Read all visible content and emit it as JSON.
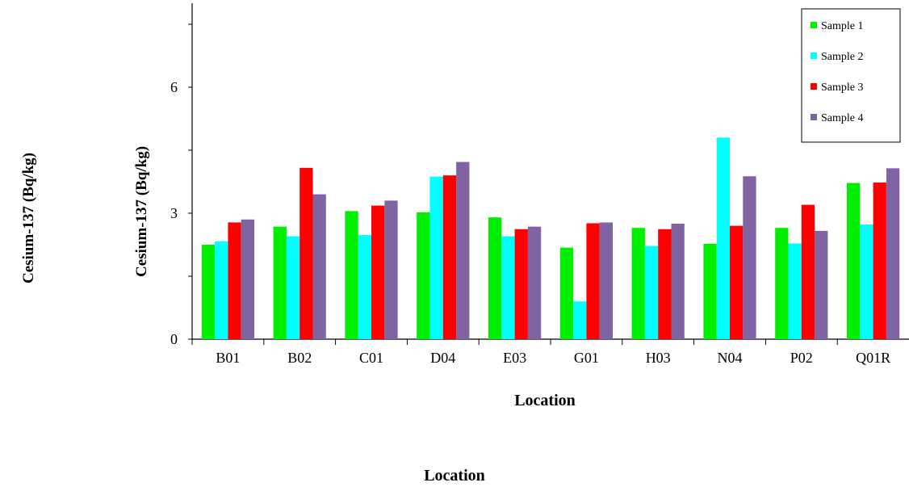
{
  "outer_labels": {
    "ylabel": "Cesium-137 (Bq/kg)",
    "xlabel": "Location"
  },
  "chart_data": {
    "type": "bar",
    "title": "",
    "xlabel": "Location",
    "ylabel": "Cesium-137 (Bq/kg)",
    "ylim": [
      0,
      8
    ],
    "yticks": [
      0,
      3,
      6
    ],
    "grid": false,
    "legend_position": "top-right",
    "categories": [
      "B01",
      "B02",
      "C01",
      "D04",
      "E03",
      "G01",
      "H03",
      "N04",
      "P02",
      "Q01R"
    ],
    "series": [
      {
        "name": "Sample 1",
        "color": "#00ee00",
        "values": [
          2.25,
          2.68,
          3.05,
          3.02,
          2.9,
          2.18,
          2.65,
          2.27,
          2.65,
          3.72
        ]
      },
      {
        "name": "Sample 2",
        "color": "#00ffff",
        "values": [
          2.33,
          2.45,
          2.48,
          3.87,
          2.45,
          0.9,
          2.22,
          4.8,
          2.28,
          2.73
        ]
      },
      {
        "name": "Sample 3",
        "color": "#ff0000",
        "values": [
          2.78,
          4.08,
          3.18,
          3.9,
          2.62,
          2.76,
          2.62,
          2.7,
          3.2,
          3.73
        ]
      },
      {
        "name": "Sample 4",
        "color": "#8064a2",
        "values": [
          2.85,
          3.45,
          3.3,
          4.22,
          2.68,
          2.78,
          2.75,
          3.88,
          2.58,
          4.07
        ]
      }
    ]
  }
}
